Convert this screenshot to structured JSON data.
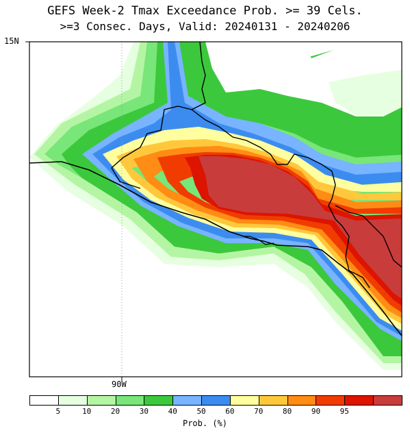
{
  "title": {
    "line1": "GEFS Week-2 Tmax Exceedance Prob. >= 39 Cels.",
    "line2": ">=3 Consec. Days, Valid: 20240131 - 20240206"
  },
  "axes": {
    "lat_label": "15N",
    "lon_label": "90W"
  },
  "colorbar": {
    "title": "Prob. (%)",
    "bins": [
      {
        "color": "#ffffff",
        "label": "5"
      },
      {
        "color": "#e6ffe0",
        "label": "10"
      },
      {
        "color": "#b4f5a3",
        "label": "20"
      },
      {
        "color": "#78e678",
        "label": "30"
      },
      {
        "color": "#3cc83c",
        "label": "40"
      },
      {
        "color": "#78b4ff",
        "label": "50"
      },
      {
        "color": "#3c8cf0",
        "label": "60"
      },
      {
        "color": "#ffffa0",
        "label": "70"
      },
      {
        "color": "#ffc83c",
        "label": "80"
      },
      {
        "color": "#ff8c14",
        "label": "90"
      },
      {
        "color": "#f03c00",
        "label": "95"
      },
      {
        "color": "#dc1400",
        "label": ""
      },
      {
        "color": "#c83c3c",
        "label": ""
      }
    ]
  }
}
